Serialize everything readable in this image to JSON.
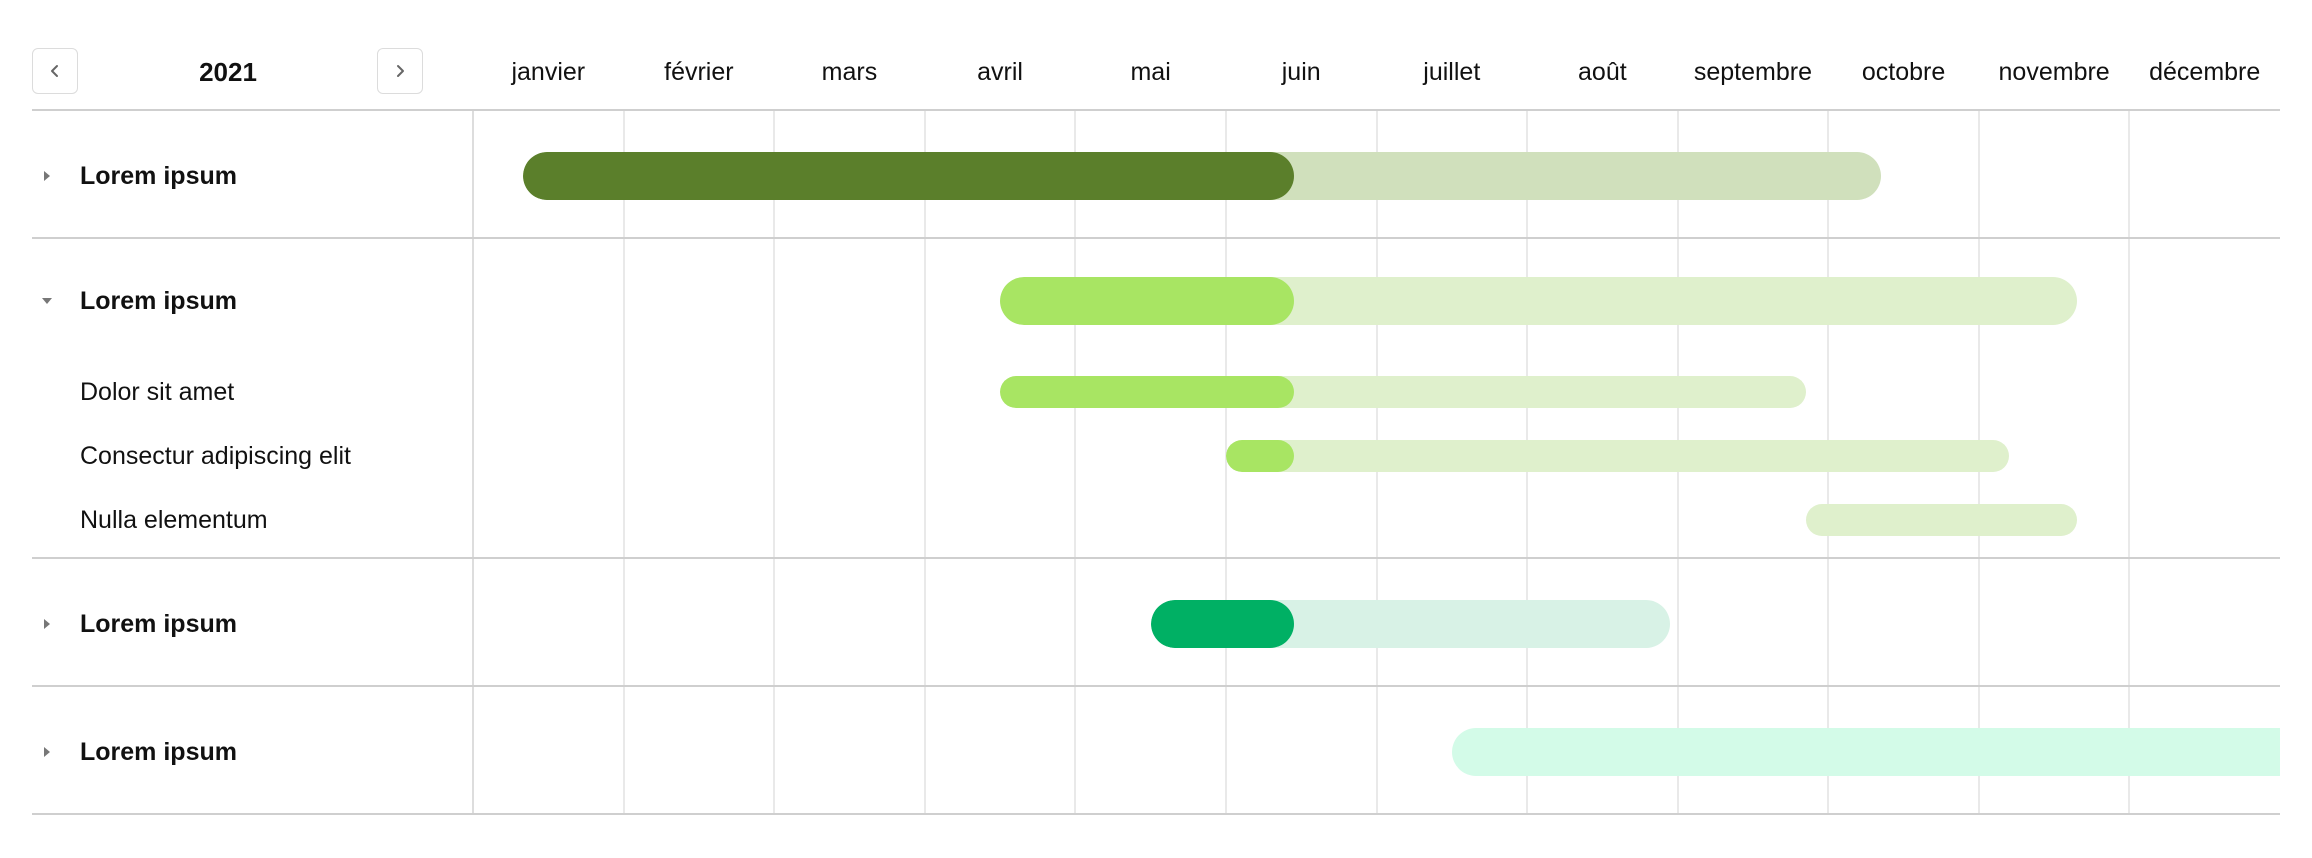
{
  "header": {
    "year": "2021",
    "prev_icon": "chevron-left-icon",
    "next_icon": "chevron-right-icon"
  },
  "months": [
    "janvier",
    "février",
    "mars",
    "avril",
    "mai",
    "juin",
    "juillet",
    "août",
    "septembre",
    "octobre",
    "novembre",
    "décembre"
  ],
  "today_month": 5.45,
  "colors": {
    "group1": {
      "dark": "#5b7f2b",
      "light": "#d0e0bc"
    },
    "group2": {
      "dark": "#a8e563",
      "light": "#dff0cc"
    },
    "group3": {
      "dark": "#00b064",
      "light": "#d8f2e6"
    },
    "group4": {
      "dark": "#00d486",
      "light": "#d3fbe8"
    }
  },
  "rows": [
    {
      "label": "Lorem ipsum",
      "type": "group",
      "expanded": false,
      "toggle_icon": "caret-right-icon",
      "start": 0.33,
      "end": 9.35,
      "progress_end": 5.45,
      "color": "group1"
    },
    {
      "label": "Lorem ipsum",
      "type": "group",
      "expanded": true,
      "toggle_icon": "caret-down-icon",
      "start": 3.5,
      "end": 10.65,
      "progress_end": 5.45,
      "color": "group2"
    },
    {
      "label": "Dolor sit amet",
      "type": "child",
      "start": 3.5,
      "end": 8.85,
      "progress_end": 5.45,
      "color": "group2"
    },
    {
      "label": "Consectur adipiscing elit",
      "type": "child",
      "start": 5.0,
      "end": 10.2,
      "progress_end": 5.45,
      "color": "group2"
    },
    {
      "label": "Nulla elementum",
      "type": "child",
      "start": 8.85,
      "end": 10.65,
      "progress_end": null,
      "color": "group2"
    },
    {
      "label": "Lorem ipsum",
      "type": "group",
      "expanded": false,
      "toggle_icon": "caret-right-icon",
      "start": 4.5,
      "end": 7.95,
      "progress_end": 5.45,
      "color": "group3"
    },
    {
      "label": "Lorem ipsum",
      "type": "group",
      "expanded": false,
      "toggle_icon": "caret-right-icon",
      "start": 6.5,
      "end": 12.0,
      "progress_end": null,
      "color": "group4"
    }
  ]
}
